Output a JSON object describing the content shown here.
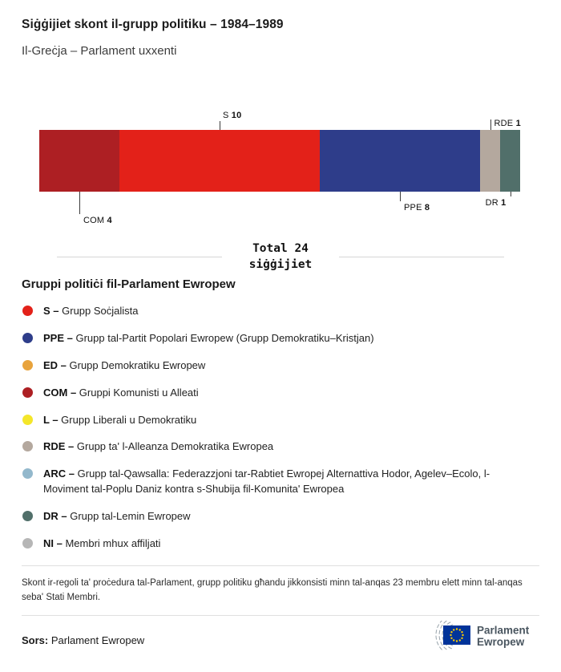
{
  "header": {
    "title": "Siġġijiet skont il-grupp politiku – 1984–1989",
    "subtitle": "Il-Greċja – Parlament uxxenti"
  },
  "chart_data": {
    "type": "bar",
    "subtype": "stacked-horizontal-single-row",
    "title": "Siġġijiet skont il-grupp politiku – 1984–1989",
    "subtitle": "Il-Greċja – Parlament uxxenti",
    "total": 24,
    "total_label_line1": "Total 24",
    "total_label_line2": "siġġijiet",
    "legend_position": "below",
    "segments": [
      {
        "code": "COM",
        "value": 4,
        "color": "#ad1f23",
        "label": {
          "side": "below",
          "line": 28,
          "pos": "end",
          "align": "left"
        }
      },
      {
        "code": "S",
        "value": 10,
        "color": "#e32119",
        "label": {
          "side": "above",
          "line": 11,
          "pos": "end",
          "align": "left"
        }
      },
      {
        "code": "PPE",
        "value": 8,
        "color": "#2e3d8a",
        "label": {
          "side": "below",
          "line": 12,
          "pos": "end",
          "align": "left"
        }
      },
      {
        "code": "RDE",
        "value": 1,
        "color": "#b4a89e",
        "label": {
          "side": "above",
          "line": 13,
          "pos": "side",
          "align": "left"
        }
      },
      {
        "code": "DR",
        "value": 1,
        "color": "#516f6a",
        "label": {
          "side": "below",
          "line": 6,
          "pos": "end",
          "align": "right"
        }
      }
    ]
  },
  "legend": {
    "heading": "Gruppi politiċi fil-Parlament Ewropew",
    "items": [
      {
        "code": "S –",
        "label": "Grupp Soċjalista",
        "color": "#e32119"
      },
      {
        "code": "PPE –",
        "label": "Grupp tal-Partit Popolari Ewropew (Grupp Demokratiku–Kristjan)",
        "color": "#2e3d8a"
      },
      {
        "code": "ED –",
        "label": "Grupp Demokratiku Ewropew",
        "color": "#e8a33c"
      },
      {
        "code": "COM –",
        "label": "Gruppi Komunisti u Alleati",
        "color": "#ad1f23"
      },
      {
        "code": "L –",
        "label": "Grupp Liberali u Demokratiku",
        "color": "#f4e62a"
      },
      {
        "code": "RDE –",
        "label": "Grupp ta' l-Alleanza Demokratika Ewropea",
        "color": "#b4a89e"
      },
      {
        "code": "ARC –",
        "label": "Grupp tal-Qawsalla: Federazzjoni tar-Rabtiet Ewropej Alternattiva Hodor, Agelev–Ecolo, l-Moviment tal-Poplu Daniz kontra s-Shubija fil-Komunita' Ewropea",
        "color": "#93b8cc"
      },
      {
        "code": "DR –",
        "label": "Grupp tal-Lemin Ewropew",
        "color": "#516f6a"
      },
      {
        "code": "NI –",
        "label": "Membri mhux affiljati",
        "color": "#b6b6b6"
      }
    ]
  },
  "footnote": "Skont ir-regoli ta' proċedura tal-Parlament, grupp politiku għandu jikkonsisti minn tal-anqas 23 membru elett minn tal-anqas seba' Stati Membri.",
  "footer": {
    "source_label": "Sors:",
    "source_text": "Parlament Ewropew",
    "logo": {
      "line1": "Parlament",
      "line2": "Ewropew"
    }
  }
}
